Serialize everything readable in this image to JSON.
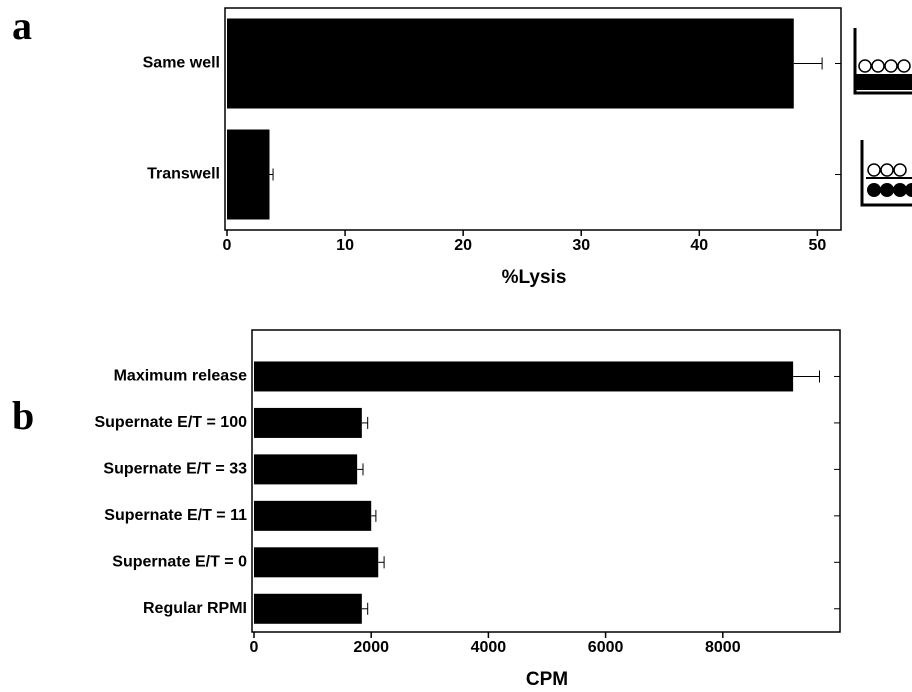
{
  "chart_data": [
    {
      "type": "hbar",
      "label": "a",
      "xlabel": "%Lysis",
      "categories": [
        "Same well",
        "Transwell"
      ],
      "values": [
        48,
        3.6
      ],
      "errors": [
        2.4,
        0.3
      ],
      "color": "#000000",
      "xlim": [
        0,
        52
      ],
      "xticks": [
        0,
        10,
        20,
        30,
        40,
        50
      ]
    },
    {
      "type": "hbar",
      "label": "b",
      "xlabel": "CPM",
      "categories": [
        "Maximum release",
        "Supernate E/T = 100",
        "Supernate E/T = 33",
        "Supernate E/T = 11",
        "Supernate E/T = 0",
        "Regular RPMI"
      ],
      "values": [
        9200,
        1840,
        1760,
        2000,
        2120,
        1840
      ],
      "errors": [
        450,
        100,
        100,
        80,
        100,
        100
      ],
      "color": "#000000",
      "xlim": [
        0,
        10000
      ],
      "xticks": [
        0,
        2000,
        4000,
        6000,
        8000
      ]
    }
  ]
}
